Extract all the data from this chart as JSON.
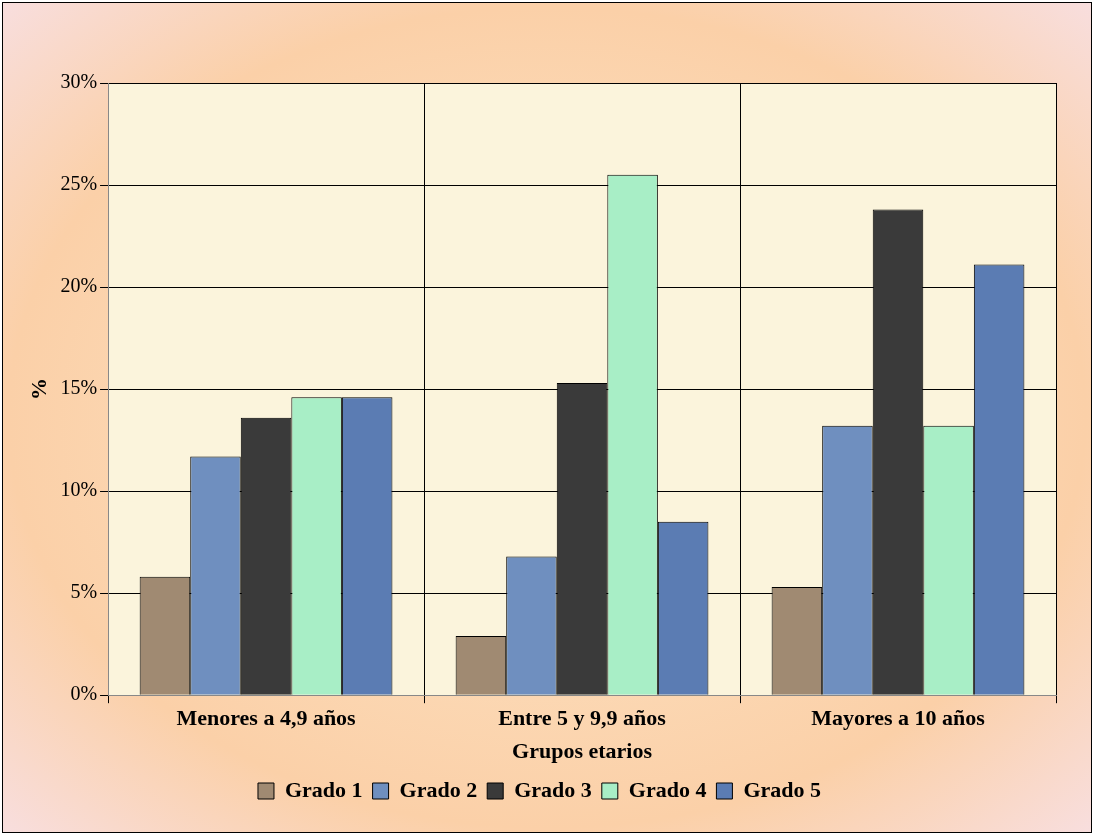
{
  "chart_data": {
    "type": "bar",
    "xlabel": "Grupos etarios",
    "ylabel": "%",
    "categories": [
      "Menores a 4,9 años",
      "Entre 5 y 9,9 años",
      "Mayores a 10 años"
    ],
    "series": [
      {
        "name": "Grado 1",
        "color": "#a08a72",
        "values": [
          5.8,
          2.9,
          5.3
        ]
      },
      {
        "name": "Grado 2",
        "color": "#6f8fbf",
        "values": [
          11.7,
          6.8,
          13.2
        ]
      },
      {
        "name": "Grado 3",
        "color": "#3a3a3a",
        "values": [
          13.6,
          15.3,
          23.8
        ]
      },
      {
        "name": "Grado 4",
        "color": "#a8eec6",
        "values": [
          14.6,
          25.5,
          13.2
        ]
      },
      {
        "name": "Grado 5",
        "color": "#5b7cb3",
        "values": [
          14.6,
          8.5,
          21.1
        ]
      }
    ],
    "ylim": [
      0,
      30
    ],
    "yticks": [
      {
        "value": 0,
        "label": "0%"
      },
      {
        "value": 5,
        "label": "5%"
      },
      {
        "value": 10,
        "label": "10%"
      },
      {
        "value": 15,
        "label": "15%"
      },
      {
        "value": 20,
        "label": "20%"
      },
      {
        "value": 25,
        "label": "25%"
      },
      {
        "value": 30,
        "label": "30%"
      }
    ],
    "grid": true,
    "legend": "bottom"
  }
}
